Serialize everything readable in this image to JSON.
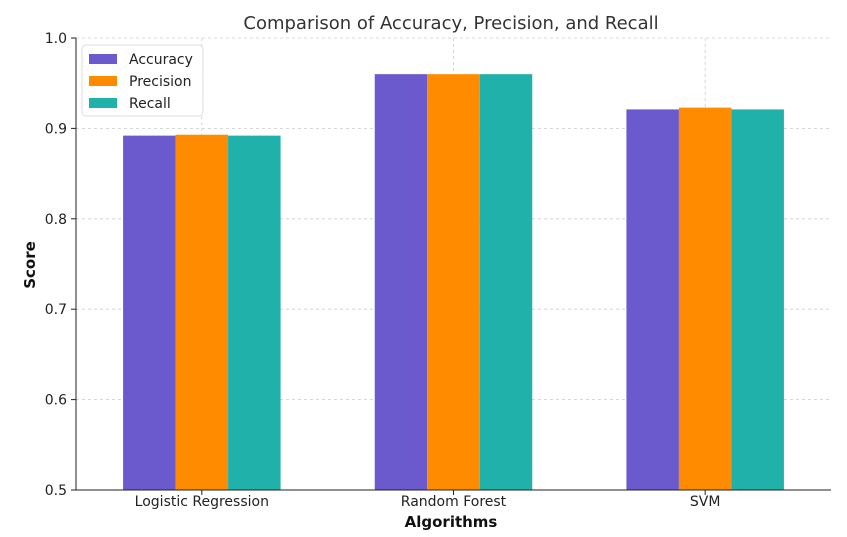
{
  "chart_data": {
    "type": "bar",
    "title": "Comparison of Accuracy, Precision, and Recall",
    "xlabel": "Algorithms",
    "ylabel": "Score",
    "categories": [
      "Logistic Regression",
      "Random Forest",
      "SVM"
    ],
    "series": [
      {
        "name": "Accuracy",
        "values": [
          0.892,
          0.96,
          0.921
        ],
        "color": "#6a5acd"
      },
      {
        "name": "Precision",
        "values": [
          0.893,
          0.96,
          0.923
        ],
        "color": "#ff8c00"
      },
      {
        "name": "Recall",
        "values": [
          0.892,
          0.96,
          0.921
        ],
        "color": "#20b2aa"
      }
    ],
    "ylim": [
      0.5,
      1.0
    ],
    "yticks": [
      "0.5",
      "0.6",
      "0.7",
      "0.8",
      "0.9",
      "1.0"
    ],
    "grid": true,
    "legend_position": "top-left"
  }
}
